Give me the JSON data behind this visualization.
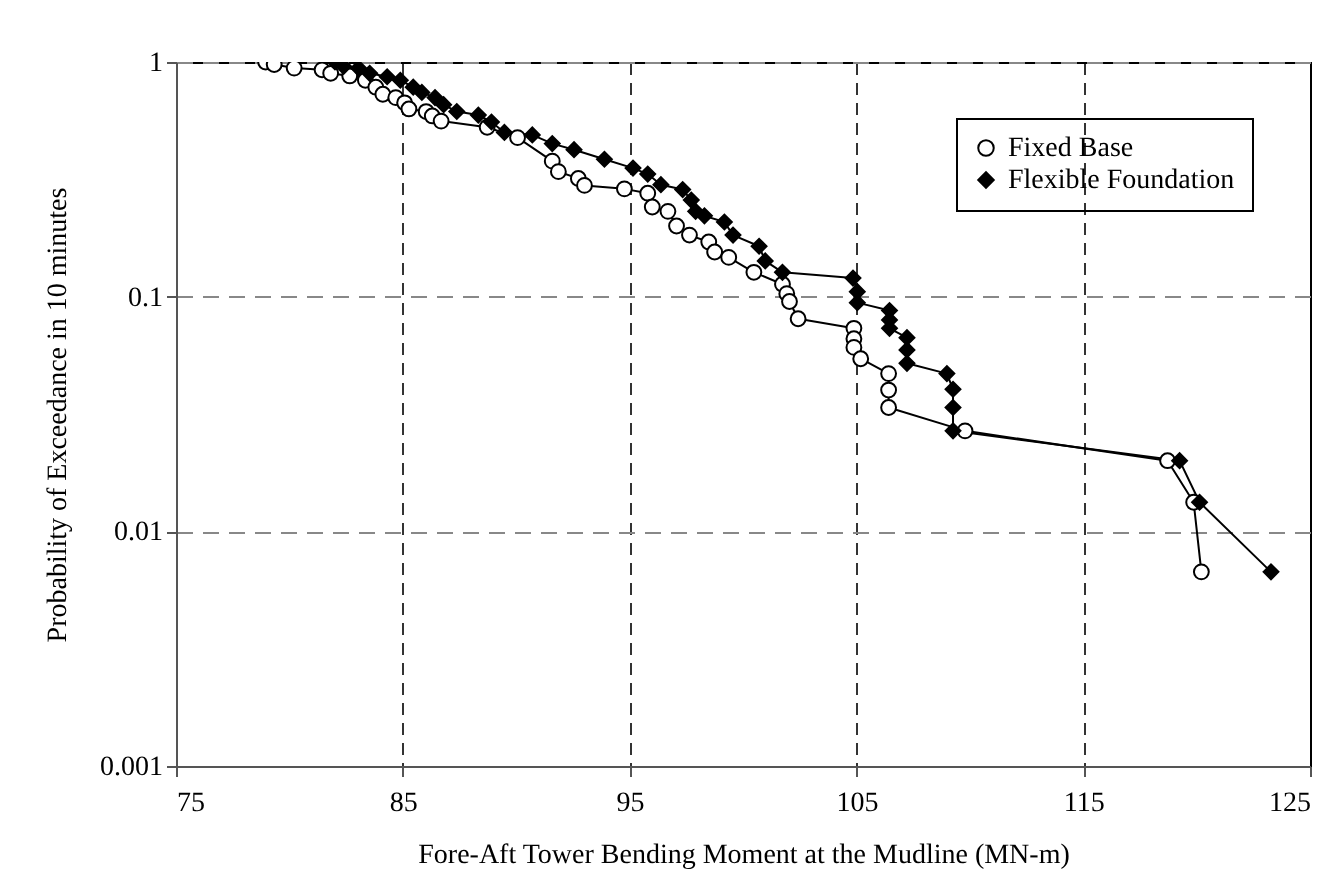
{
  "chart_data": {
    "type": "line",
    "xlabel": "Fore-Aft Tower Bending Moment at the Mudline (MN-m)",
    "ylabel": "Probability of Exceedance in 10 minutes",
    "log": "y",
    "xlim": [
      75,
      125
    ],
    "xticks": [
      75,
      85,
      95,
      105,
      115,
      125
    ],
    "ylim": [
      0.001,
      1
    ],
    "yticks": [
      0.001,
      0.01,
      0.1,
      1
    ],
    "grid": true,
    "legend": "top right",
    "series": [
      {
        "name": "Fixed Base",
        "color": "#000000",
        "marker": "circle",
        "x": [
          78.95,
          79.33,
          80.21,
          81.44,
          81.82,
          82.66,
          83.35,
          83.81,
          84.12,
          84.69,
          85.08,
          85.27,
          86.03,
          86.3,
          86.69,
          88.72,
          90.06,
          91.59,
          91.86,
          92.74,
          93.01,
          94.77,
          95.8,
          96.0,
          96.69,
          97.07,
          97.64,
          98.49,
          98.75,
          99.37,
          100.48,
          101.74,
          101.93,
          102.05,
          102.43,
          104.89,
          104.89,
          104.89,
          105.19,
          106.42,
          106.42,
          106.42,
          109.79,
          118.72,
          119.87,
          120.21
        ],
        "values": [
          1,
          0.975,
          0.942,
          0.926,
          0.895,
          0.872,
          0.836,
          0.781,
          0.729,
          0.705,
          0.67,
          0.631,
          0.615,
          0.589,
          0.56,
          0.527,
          0.476,
          0.378,
          0.341,
          0.319,
          0.298,
          0.288,
          0.276,
          0.241,
          0.231,
          0.2,
          0.183,
          0.171,
          0.155,
          0.147,
          0.127,
          0.113,
          0.103,
          0.0954,
          0.0805,
          0.0733,
          0.0662,
          0.0608,
          0.0544,
          0.047,
          0.04,
          0.0337,
          0.0268,
          0.02,
          0.0133,
          0.00672
        ]
      },
      {
        "name": "Flexible Foundation",
        "color": "#000000",
        "marker": "diamond",
        "x": [
          82.01,
          82.39,
          83.05,
          83.54,
          84.31,
          84.89,
          85.46,
          85.84,
          86.42,
          86.8,
          87.38,
          88.33,
          88.91,
          89.48,
          90.71,
          91.59,
          92.55,
          93.89,
          95.15,
          95.8,
          96.38,
          97.34,
          97.72,
          97.91,
          98.3,
          99.18,
          99.56,
          100.71,
          100.98,
          101.74,
          104.85,
          105.04,
          105.04,
          106.46,
          106.46,
          106.46,
          107.23,
          107.23,
          107.23,
          108.99,
          109.26,
          109.26,
          109.26,
          119.25,
          120.13,
          123.28
        ],
        "values": [
          1,
          0.958,
          0.942,
          0.895,
          0.865,
          0.836,
          0.781,
          0.742,
          0.705,
          0.658,
          0.615,
          0.594,
          0.555,
          0.501,
          0.489,
          0.449,
          0.423,
          0.385,
          0.353,
          0.333,
          0.3,
          0.286,
          0.258,
          0.231,
          0.221,
          0.208,
          0.183,
          0.164,
          0.142,
          0.127,
          0.12,
          0.105,
          0.0943,
          0.0873,
          0.0796,
          0.0733,
          0.0669,
          0.0593,
          0.052,
          0.047,
          0.0403,
          0.0337,
          0.0268,
          0.02,
          0.0133,
          0.00672
        ]
      }
    ]
  }
}
